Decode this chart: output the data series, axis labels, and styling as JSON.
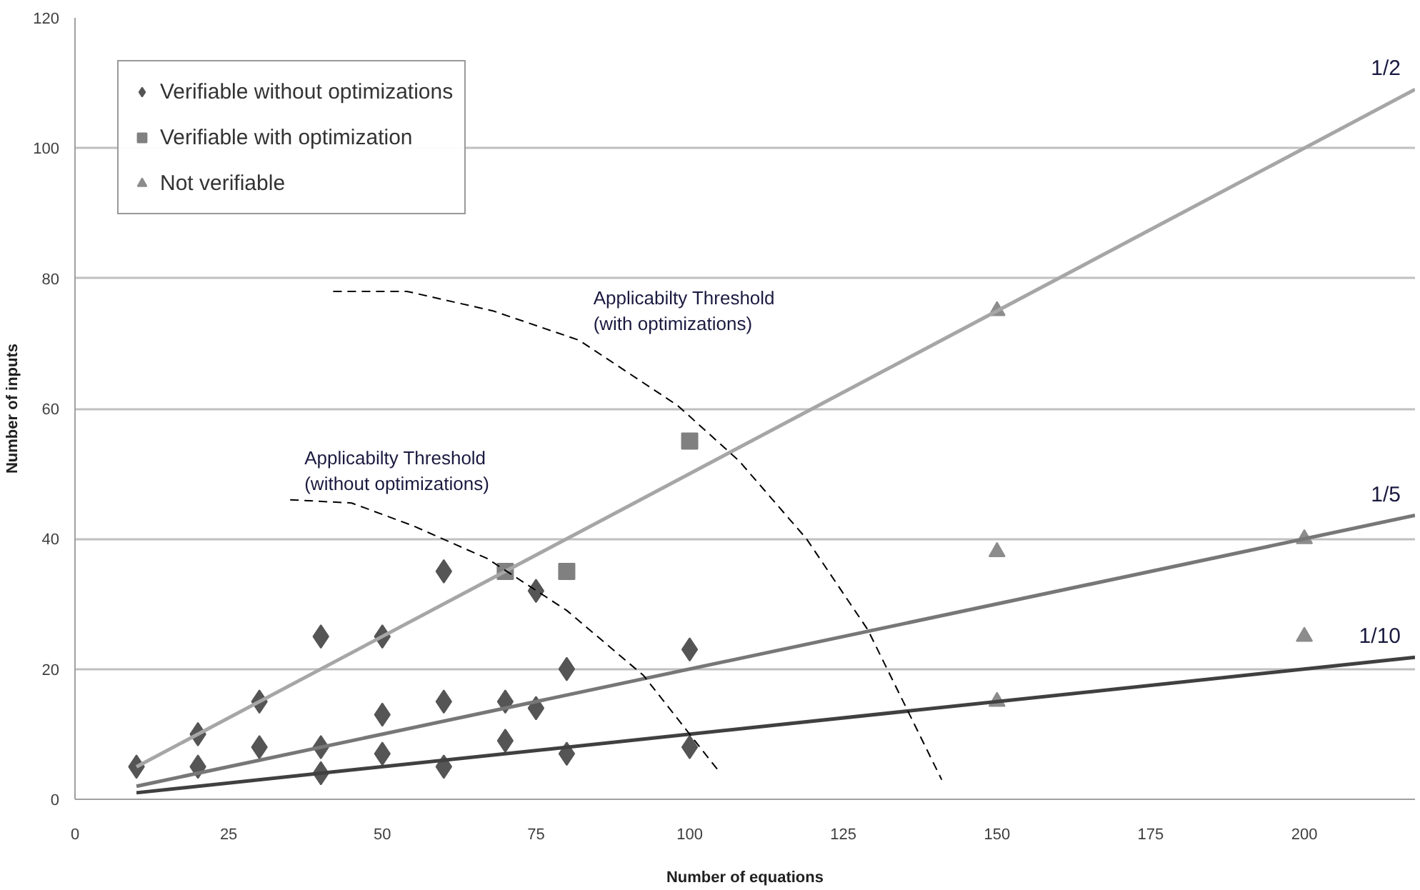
{
  "chart_data": {
    "type": "scatter",
    "xlabel": "Number of equations",
    "ylabel": "Number of inputs",
    "xlim": [
      0,
      218
    ],
    "ylim": [
      0,
      120
    ],
    "xticks": [
      0,
      25,
      50,
      75,
      100,
      125,
      150,
      175,
      200
    ],
    "yticks": [
      0,
      20,
      40,
      60,
      80,
      100,
      120
    ],
    "grid": "y",
    "legend": "top left",
    "series": [
      {
        "name": "Verifiable without optimizations",
        "color": "#555555",
        "marker": "diamond",
        "x": [
          10,
          20,
          20,
          30,
          30,
          40,
          40,
          40,
          50,
          50,
          50,
          60,
          60,
          60,
          70,
          70,
          75,
          75,
          80,
          80,
          100,
          100
        ],
        "values": [
          5,
          10,
          5,
          15,
          8,
          25,
          8,
          4,
          25,
          13,
          7,
          35,
          15,
          5,
          15,
          9,
          32,
          14,
          20,
          7,
          23,
          8
        ]
      },
      {
        "name": "Verifiable with optimization",
        "color": "#808080",
        "marker": "square",
        "x": [
          70,
          80,
          100
        ],
        "values": [
          35,
          35,
          55
        ]
      },
      {
        "name": "Not verifiable",
        "color": "#8c8c8c",
        "marker": "triangle",
        "x": [
          150,
          150,
          150,
          200,
          200
        ],
        "values": [
          75,
          38,
          15,
          40,
          25
        ]
      },
      {
        "type": "line",
        "name": "1/2",
        "color": "#a6a6a6",
        "marker": "none",
        "line_style": "solid",
        "x": [
          10,
          218
        ],
        "values": [
          5,
          109
        ]
      },
      {
        "type": "line",
        "name": "1/5",
        "color": "#777777",
        "marker": "none",
        "line_style": "solid",
        "x": [
          10,
          218
        ],
        "values": [
          2,
          43.6
        ]
      },
      {
        "type": "line",
        "name": "1/10",
        "color": "#404040",
        "marker": "none",
        "line_style": "solid",
        "x": [
          10,
          218
        ],
        "values": [
          1,
          21.8
        ]
      },
      {
        "type": "line",
        "color": "#000000",
        "marker": "none",
        "line_style": "dashed",
        "x": [
          35,
          45,
          55,
          67,
          80,
          92.5,
          105
        ],
        "values": [
          46,
          45.5,
          42,
          37,
          29,
          19,
          4
        ]
      },
      {
        "type": "line",
        "color": "#000000",
        "marker": "none",
        "line_style": "dashed",
        "x": [
          42,
          54,
          68,
          82,
          98,
          108,
          119,
          129,
          141
        ],
        "values": [
          78,
          78,
          75,
          70.5,
          60.5,
          52,
          40,
          26,
          3
        ]
      }
    ],
    "annotations": [
      {
        "text": "Applicabilty Threshold\n(with optimizations)",
        "x": 82,
        "y": 70.5
      },
      {
        "text": "Applicabilty Threshold\n(without optimizations)",
        "x": 35,
        "y": 46
      }
    ]
  }
}
